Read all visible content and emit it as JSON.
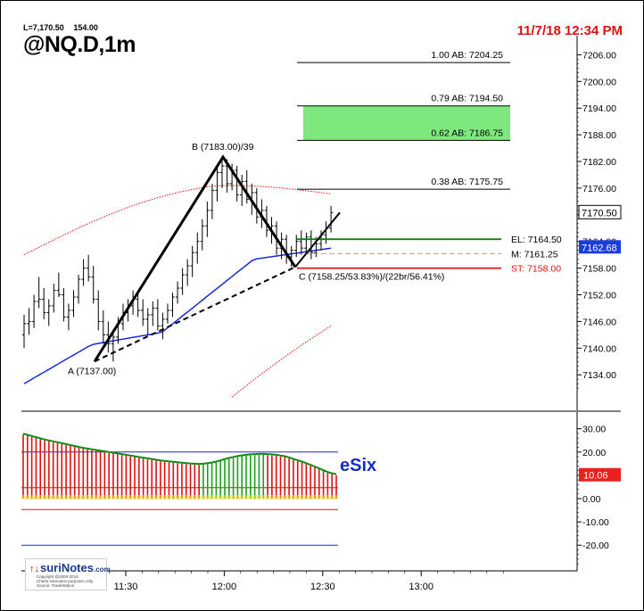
{
  "header": {
    "last_price": "L=7,170.50",
    "last_volume": "154.00",
    "symbol": "@NQ.D,1m",
    "timestamp": "11/7/18 12:34 PM"
  },
  "logo": {
    "arrow": "↑↓",
    "name": "suriNotes",
    "domain": ".com",
    "copyright": "Copyright @2000-2018",
    "disclaimer": "Charts education purposes only.",
    "source": "Source: TradeStation"
  },
  "colors": {
    "accent_red": "#e01010",
    "entry_green": "#1a7a1a",
    "target_zone": "#7ee87e",
    "ma_blue": "#0a1ee6",
    "band_red": "#e01010",
    "esix_label": "#1a2cc8",
    "esix_badge": "#e82020",
    "price_badge_blue": "#1a3cd8"
  },
  "chart_data": [
    {
      "type": "candlestick",
      "title": "@NQ.D,1m",
      "y_axis": {
        "ylim": [
          7128,
          7210
        ],
        "ticks": [
          "7206.00",
          "7200.00",
          "7194.00",
          "7188.00",
          "7182.00",
          "7176.00",
          "7170.00",
          "7164.00",
          "7158.00",
          "7152.00",
          "7146.00",
          "7140.00",
          "7134.00"
        ]
      },
      "x_axis": {
        "ticks": [
          "11:30",
          "12:00",
          "12:30",
          "13:00"
        ]
      },
      "current_price_badge": "7170.50",
      "ma_badge": "7162.68",
      "pattern_points": [
        {
          "name": "A",
          "label": "A (7137.00)",
          "price": 7137.0
        },
        {
          "name": "B",
          "label": "B (7183.00)/39",
          "price": 7183.0
        },
        {
          "name": "C",
          "label": "C (7158.25/53.83%)/(22br/56.41%)",
          "price": 7158.25
        }
      ],
      "fib_projections": [
        {
          "label": "1.00 AB: 7204.25",
          "price": 7204.25
        },
        {
          "label": "0.79 AB: 7194.50",
          "price": 7194.5
        },
        {
          "label": "0.62 AB: 7186.75",
          "price": 7186.75
        },
        {
          "label": "0.38 AB: 7175.75",
          "price": 7175.75
        }
      ],
      "target_zone": [
        7186.75,
        7194.5
      ],
      "trade_levels": [
        {
          "label": "EL: 7164.50",
          "price": 7164.5,
          "color": "#1a7a1a"
        },
        {
          "label": "M: 7161.25",
          "price": 7161.25,
          "color": "#c8a080"
        },
        {
          "label": "ST: 7158.00",
          "price": 7158.0,
          "color": "#e01010"
        }
      ],
      "candles": [
        {
          "o": 7143.0,
          "h": 7147.5,
          "l": 7140.0,
          "c": 7145.5
        },
        {
          "o": 7145.5,
          "h": 7149.0,
          "l": 7143.0,
          "c": 7146.0
        },
        {
          "o": 7146.0,
          "h": 7152.0,
          "l": 7144.5,
          "c": 7150.5
        },
        {
          "o": 7150.5,
          "h": 7156.0,
          "l": 7149.0,
          "c": 7151.0
        },
        {
          "o": 7151.0,
          "h": 7153.5,
          "l": 7146.5,
          "c": 7148.0
        },
        {
          "o": 7148.0,
          "h": 7151.0,
          "l": 7145.0,
          "c": 7149.5
        },
        {
          "o": 7149.5,
          "h": 7154.5,
          "l": 7148.0,
          "c": 7153.0
        },
        {
          "o": 7153.0,
          "h": 7157.0,
          "l": 7151.5,
          "c": 7152.0
        },
        {
          "o": 7152.0,
          "h": 7153.5,
          "l": 7146.0,
          "c": 7147.0
        },
        {
          "o": 7147.0,
          "h": 7150.0,
          "l": 7144.0,
          "c": 7148.5
        },
        {
          "o": 7148.5,
          "h": 7153.0,
          "l": 7147.0,
          "c": 7151.5
        },
        {
          "o": 7151.5,
          "h": 7156.5,
          "l": 7150.0,
          "c": 7155.5
        },
        {
          "o": 7155.5,
          "h": 7160.0,
          "l": 7154.0,
          "c": 7158.0
        },
        {
          "o": 7158.0,
          "h": 7161.0,
          "l": 7155.0,
          "c": 7156.0
        },
        {
          "o": 7156.0,
          "h": 7158.5,
          "l": 7150.0,
          "c": 7151.0
        },
        {
          "o": 7151.0,
          "h": 7153.0,
          "l": 7144.0,
          "c": 7146.0
        },
        {
          "o": 7146.0,
          "h": 7148.5,
          "l": 7141.0,
          "c": 7143.0
        },
        {
          "o": 7143.0,
          "h": 7146.0,
          "l": 7139.0,
          "c": 7141.0
        },
        {
          "o": 7141.0,
          "h": 7144.0,
          "l": 7137.0,
          "c": 7142.5
        },
        {
          "o": 7142.5,
          "h": 7147.0,
          "l": 7141.0,
          "c": 7145.5
        },
        {
          "o": 7145.5,
          "h": 7150.0,
          "l": 7144.0,
          "c": 7148.0
        },
        {
          "o": 7148.0,
          "h": 7151.0,
          "l": 7146.0,
          "c": 7149.5
        },
        {
          "o": 7149.5,
          "h": 7153.0,
          "l": 7147.5,
          "c": 7151.0
        },
        {
          "o": 7151.0,
          "h": 7152.5,
          "l": 7147.0,
          "c": 7148.5
        },
        {
          "o": 7148.5,
          "h": 7151.0,
          "l": 7145.0,
          "c": 7146.5
        },
        {
          "o": 7146.5,
          "h": 7149.0,
          "l": 7143.0,
          "c": 7147.5
        },
        {
          "o": 7147.5,
          "h": 7150.5,
          "l": 7145.0,
          "c": 7149.0
        },
        {
          "o": 7149.0,
          "h": 7151.0,
          "l": 7144.0,
          "c": 7145.0
        },
        {
          "o": 7145.0,
          "h": 7148.0,
          "l": 7142.0,
          "c": 7146.5
        },
        {
          "o": 7146.5,
          "h": 7150.0,
          "l": 7145.5,
          "c": 7148.5
        },
        {
          "o": 7148.5,
          "h": 7152.5,
          "l": 7147.0,
          "c": 7151.5
        },
        {
          "o": 7151.5,
          "h": 7155.0,
          "l": 7150.0,
          "c": 7153.5
        },
        {
          "o": 7153.5,
          "h": 7158.0,
          "l": 7152.0,
          "c": 7156.5
        },
        {
          "o": 7156.5,
          "h": 7160.0,
          "l": 7154.0,
          "c": 7158.5
        },
        {
          "o": 7158.5,
          "h": 7163.0,
          "l": 7156.0,
          "c": 7161.5
        },
        {
          "o": 7161.5,
          "h": 7166.0,
          "l": 7159.0,
          "c": 7164.0
        },
        {
          "o": 7164.0,
          "h": 7169.0,
          "l": 7162.0,
          "c": 7167.5
        },
        {
          "o": 7167.5,
          "h": 7173.0,
          "l": 7165.0,
          "c": 7171.0
        },
        {
          "o": 7171.0,
          "h": 7177.0,
          "l": 7169.0,
          "c": 7175.5
        },
        {
          "o": 7175.5,
          "h": 7181.0,
          "l": 7173.0,
          "c": 7179.5
        },
        {
          "o": 7179.5,
          "h": 7183.0,
          "l": 7176.0,
          "c": 7181.0
        },
        {
          "o": 7181.0,
          "h": 7182.5,
          "l": 7175.0,
          "c": 7177.0
        },
        {
          "o": 7177.0,
          "h": 7181.5,
          "l": 7175.5,
          "c": 7180.0
        },
        {
          "o": 7180.0,
          "h": 7181.0,
          "l": 7173.0,
          "c": 7174.5
        },
        {
          "o": 7174.5,
          "h": 7179.0,
          "l": 7172.0,
          "c": 7177.5
        },
        {
          "o": 7177.5,
          "h": 7180.0,
          "l": 7172.5,
          "c": 7173.5
        },
        {
          "o": 7173.5,
          "h": 7177.0,
          "l": 7170.0,
          "c": 7175.0
        },
        {
          "o": 7175.0,
          "h": 7176.0,
          "l": 7168.0,
          "c": 7169.5
        },
        {
          "o": 7169.5,
          "h": 7173.5,
          "l": 7167.0,
          "c": 7171.0
        },
        {
          "o": 7171.0,
          "h": 7172.0,
          "l": 7165.0,
          "c": 7166.5
        },
        {
          "o": 7166.5,
          "h": 7169.5,
          "l": 7163.5,
          "c": 7167.5
        },
        {
          "o": 7167.5,
          "h": 7168.5,
          "l": 7161.0,
          "c": 7162.5
        },
        {
          "o": 7162.5,
          "h": 7166.0,
          "l": 7160.0,
          "c": 7164.5
        },
        {
          "o": 7164.5,
          "h": 7165.5,
          "l": 7159.0,
          "c": 7160.5
        },
        {
          "o": 7160.5,
          "h": 7163.0,
          "l": 7158.25,
          "c": 7162.0
        },
        {
          "o": 7162.0,
          "h": 7165.5,
          "l": 7160.5,
          "c": 7164.0
        },
        {
          "o": 7164.0,
          "h": 7166.5,
          "l": 7161.0,
          "c": 7162.5
        },
        {
          "o": 7162.5,
          "h": 7166.0,
          "l": 7161.5,
          "c": 7165.0
        },
        {
          "o": 7165.0,
          "h": 7166.5,
          "l": 7160.0,
          "c": 7161.5
        },
        {
          "o": 7161.5,
          "h": 7165.0,
          "l": 7160.5,
          "c": 7163.5
        },
        {
          "o": 7163.5,
          "h": 7166.5,
          "l": 7162.0,
          "c": 7165.5
        },
        {
          "o": 7165.5,
          "h": 7168.5,
          "l": 7163.5,
          "c": 7167.0
        },
        {
          "o": 7167.0,
          "h": 7172.0,
          "l": 7166.0,
          "c": 7170.5
        }
      ]
    },
    {
      "type": "bar",
      "title": "eSix",
      "y_axis": {
        "ylim": [
          -24,
          34
        ],
        "ticks": [
          "30.00",
          "20.00",
          "10.00",
          "0.00",
          "-10.00",
          "-20.00"
        ]
      },
      "current_value_badge": "10.06",
      "reference_levels": [
        20,
        5,
        -5,
        -20
      ],
      "values": [
        27.5,
        27.0,
        26.5,
        26.0,
        25.5,
        25.0,
        24.6,
        24.2,
        23.8,
        23.4,
        23.0,
        22.6,
        22.2,
        21.8,
        21.4,
        21.1,
        20.8,
        20.5,
        20.2,
        19.9,
        19.6,
        19.3,
        19.0,
        18.7,
        18.4,
        18.1,
        17.8,
        17.5,
        17.2,
        16.9,
        16.6,
        16.3,
        16.0,
        15.8,
        15.6,
        15.4,
        15.2,
        15.0,
        14.8,
        14.7,
        14.6,
        14.5,
        14.6,
        14.8,
        15.1,
        15.5,
        16.0,
        16.6,
        17.1,
        17.5,
        17.9,
        18.2,
        18.4,
        18.6,
        18.7,
        18.8,
        18.8,
        18.7,
        18.6,
        18.4,
        18.1,
        17.8,
        17.3,
        16.7,
        16.1,
        15.5,
        14.8,
        14.1,
        13.4,
        12.6,
        11.8,
        11.0,
        10.5,
        10.06
      ],
      "bar_colors": [
        "red",
        "red",
        "red",
        "red",
        "red",
        "red",
        "red",
        "red",
        "red",
        "red",
        "red",
        "red",
        "red",
        "red",
        "red",
        "red",
        "red",
        "red",
        "red",
        "red",
        "red",
        "red",
        "red",
        "red",
        "red",
        "red",
        "red",
        "red",
        "red",
        "red",
        "red",
        "red",
        "red",
        "red",
        "red",
        "red",
        "red",
        "red",
        "red",
        "red",
        "red",
        "red",
        "green",
        "green",
        "green",
        "green",
        "green",
        "green",
        "green",
        "green",
        "green",
        "green",
        "green",
        "green",
        "green",
        "green",
        "green",
        "red",
        "red",
        "red",
        "red",
        "red",
        "red",
        "red",
        "red",
        "red",
        "red",
        "red",
        "red",
        "red",
        "red",
        "red",
        "red",
        "red"
      ]
    }
  ]
}
